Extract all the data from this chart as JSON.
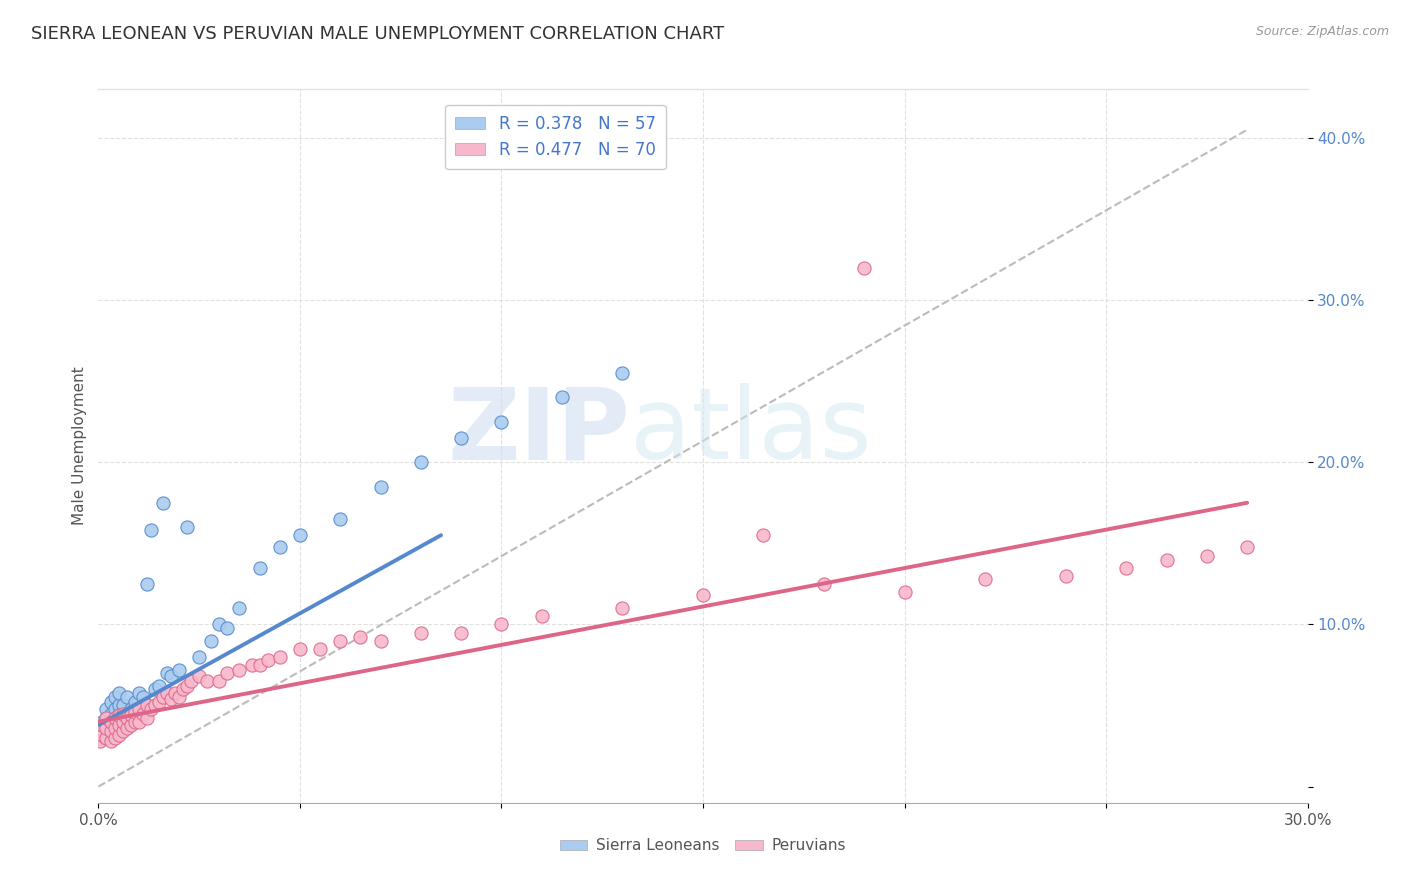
{
  "title": "SIERRA LEONEAN VS PERUVIAN MALE UNEMPLOYMENT CORRELATION CHART",
  "source": "Source: ZipAtlas.com",
  "ylabel": "Male Unemployment",
  "xlim": [
    0.0,
    0.3
  ],
  "ylim": [
    -0.01,
    0.43
  ],
  "sierra_color": "#aaccf0",
  "sierra_edge": "#5588cc",
  "peruvian_color": "#f8b8cc",
  "peruvian_edge": "#dd6688",
  "sierra_R": 0.378,
  "sierra_N": 57,
  "peruvian_R": 0.477,
  "peruvian_N": 70,
  "watermark_zip": "ZIP",
  "watermark_atlas": "atlas",
  "background_color": "#ffffff",
  "grid_color": "#e0e0e0",
  "title_fontsize": 13,
  "label_fontsize": 11,
  "sierra_scatter_x": [
    0.0005,
    0.001,
    0.001,
    0.002,
    0.002,
    0.002,
    0.003,
    0.003,
    0.003,
    0.003,
    0.004,
    0.004,
    0.004,
    0.004,
    0.004,
    0.005,
    0.005,
    0.005,
    0.005,
    0.005,
    0.006,
    0.006,
    0.006,
    0.007,
    0.007,
    0.007,
    0.008,
    0.008,
    0.009,
    0.009,
    0.01,
    0.01,
    0.011,
    0.012,
    0.013,
    0.014,
    0.015,
    0.016,
    0.017,
    0.018,
    0.02,
    0.022,
    0.025,
    0.028,
    0.03,
    0.032,
    0.035,
    0.04,
    0.045,
    0.05,
    0.06,
    0.07,
    0.08,
    0.09,
    0.1,
    0.115,
    0.13
  ],
  "sierra_scatter_y": [
    0.03,
    0.035,
    0.04,
    0.038,
    0.042,
    0.048,
    0.032,
    0.038,
    0.045,
    0.052,
    0.033,
    0.038,
    0.042,
    0.048,
    0.055,
    0.035,
    0.04,
    0.045,
    0.05,
    0.058,
    0.038,
    0.042,
    0.05,
    0.04,
    0.045,
    0.055,
    0.042,
    0.048,
    0.045,
    0.052,
    0.048,
    0.058,
    0.055,
    0.125,
    0.158,
    0.06,
    0.062,
    0.175,
    0.07,
    0.068,
    0.072,
    0.16,
    0.08,
    0.09,
    0.1,
    0.098,
    0.11,
    0.135,
    0.148,
    0.155,
    0.165,
    0.185,
    0.2,
    0.215,
    0.225,
    0.24,
    0.255
  ],
  "peruvian_scatter_x": [
    0.0005,
    0.001,
    0.001,
    0.002,
    0.002,
    0.002,
    0.003,
    0.003,
    0.003,
    0.004,
    0.004,
    0.004,
    0.005,
    0.005,
    0.005,
    0.006,
    0.006,
    0.006,
    0.007,
    0.007,
    0.008,
    0.008,
    0.009,
    0.009,
    0.01,
    0.01,
    0.011,
    0.012,
    0.012,
    0.013,
    0.014,
    0.015,
    0.016,
    0.017,
    0.018,
    0.019,
    0.02,
    0.021,
    0.022,
    0.023,
    0.025,
    0.027,
    0.03,
    0.032,
    0.035,
    0.038,
    0.04,
    0.042,
    0.045,
    0.05,
    0.055,
    0.06,
    0.065,
    0.07,
    0.08,
    0.09,
    0.1,
    0.11,
    0.13,
    0.15,
    0.165,
    0.18,
    0.19,
    0.2,
    0.22,
    0.24,
    0.255,
    0.265,
    0.275,
    0.285
  ],
  "peruvian_scatter_y": [
    0.028,
    0.032,
    0.038,
    0.03,
    0.036,
    0.042,
    0.028,
    0.034,
    0.04,
    0.03,
    0.036,
    0.042,
    0.032,
    0.038,
    0.044,
    0.034,
    0.04,
    0.045,
    0.036,
    0.042,
    0.038,
    0.044,
    0.04,
    0.046,
    0.04,
    0.048,
    0.045,
    0.042,
    0.05,
    0.048,
    0.05,
    0.052,
    0.055,
    0.058,
    0.054,
    0.058,
    0.055,
    0.06,
    0.062,
    0.065,
    0.068,
    0.065,
    0.065,
    0.07,
    0.072,
    0.075,
    0.075,
    0.078,
    0.08,
    0.085,
    0.085,
    0.09,
    0.092,
    0.09,
    0.095,
    0.095,
    0.1,
    0.105,
    0.11,
    0.118,
    0.155,
    0.125,
    0.32,
    0.12,
    0.128,
    0.13,
    0.135,
    0.14,
    0.142,
    0.148
  ],
  "sierra_trend_x": [
    0.0,
    0.085
  ],
  "sierra_trend_y": [
    0.038,
    0.155
  ],
  "peruvian_trend_x": [
    0.0,
    0.285
  ],
  "peruvian_trend_y": [
    0.04,
    0.175
  ],
  "dash_line_x": [
    0.0,
    0.285
  ],
  "dash_line_y": [
    0.0,
    0.405
  ]
}
